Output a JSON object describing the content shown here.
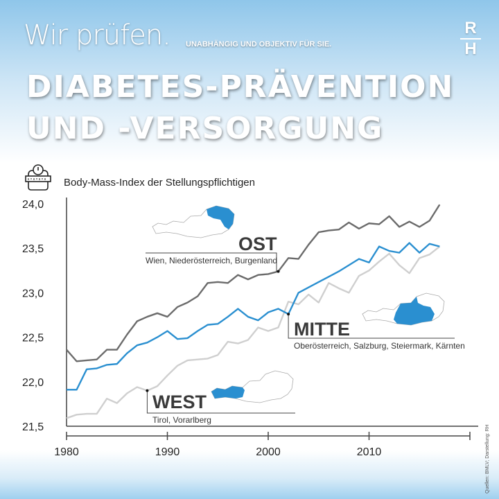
{
  "header": {
    "tagline_main": "Wir prüfen.",
    "tagline_sub": "UNABHÄNGIG UND OBJEKTIV FÜR SIE.",
    "title_line1": "DIABETES-PRÄVENTION",
    "title_line2": "UND -VERSORGUNG",
    "logo_top": "R",
    "logo_bottom": "H",
    "icon": "scale-with-measuring-tape-icon"
  },
  "source": "Quellen: BMLV; Darstellung: RH",
  "colors": {
    "ost": "#6b6b6b",
    "mitte": "#2a8fd0",
    "west": "#cfcfcf",
    "map_highlight": "#2a8fd0"
  },
  "chart_data": {
    "type": "line",
    "title": "Body-Mass-Index der Stellungspflichtigen",
    "xlabel": "",
    "ylabel": "",
    "xlim": [
      1980,
      2020
    ],
    "ylim": [
      21.5,
      24.0
    ],
    "x_ticks": [
      "1980",
      "1990",
      "2000",
      "2010"
    ],
    "y_ticks": [
      "24,0",
      "23,5",
      "23,0",
      "22,5",
      "22,0",
      "21,5"
    ],
    "grid": false,
    "x": [
      1980,
      1981,
      1982,
      1983,
      1984,
      1985,
      1986,
      1987,
      1988,
      1989,
      1990,
      1991,
      1992,
      1993,
      1994,
      1995,
      1996,
      1997,
      1998,
      1999,
      2000,
      2001,
      2002,
      2003,
      2004,
      2005,
      2006,
      2007,
      2008,
      2009,
      2010,
      2011,
      2012,
      2013,
      2014,
      2015,
      2016,
      2017
    ],
    "series": [
      {
        "name": "OST",
        "regions": "Wien, Niederösterreich, Burgenland",
        "label_year": 2001,
        "values": [
          22.36,
          22.23,
          22.24,
          22.25,
          22.36,
          22.36,
          22.53,
          22.68,
          22.73,
          22.77,
          22.73,
          22.84,
          22.89,
          22.96,
          23.11,
          23.12,
          23.11,
          23.2,
          23.15,
          23.2,
          23.21,
          23.24,
          23.39,
          23.38,
          23.54,
          23.68,
          23.7,
          23.71,
          23.79,
          23.72,
          23.78,
          23.77,
          23.86,
          23.74,
          23.8,
          23.74,
          23.81,
          23.99
        ]
      },
      {
        "name": "MITTE",
        "regions": "Oberösterreich, Salzburg, Steiermark, Kärnten",
        "label_year": 2002,
        "values": [
          21.91,
          21.91,
          22.14,
          22.15,
          22.19,
          22.2,
          22.32,
          22.41,
          22.44,
          22.5,
          22.57,
          22.48,
          22.49,
          22.57,
          22.64,
          22.65,
          22.73,
          22.82,
          22.73,
          22.69,
          22.78,
          22.82,
          22.76,
          23.0,
          23.06,
          23.12,
          23.18,
          23.24,
          23.31,
          23.38,
          23.34,
          23.52,
          23.47,
          23.45,
          23.56,
          23.45,
          23.55,
          23.52
        ]
      },
      {
        "name": "WEST",
        "regions": "Tirol, Vorarlberg",
        "label_year": 1988,
        "values": [
          21.59,
          21.63,
          21.64,
          21.64,
          21.81,
          21.76,
          21.87,
          21.94,
          21.9,
          21.95,
          22.07,
          22.18,
          22.24,
          22.25,
          22.26,
          22.3,
          22.45,
          22.43,
          22.47,
          22.61,
          22.57,
          22.61,
          22.9,
          22.87,
          22.98,
          22.89,
          23.11,
          23.05,
          23.0,
          23.19,
          23.25,
          23.35,
          23.44,
          23.31,
          23.22,
          23.39,
          23.43,
          23.52
        ]
      }
    ]
  }
}
